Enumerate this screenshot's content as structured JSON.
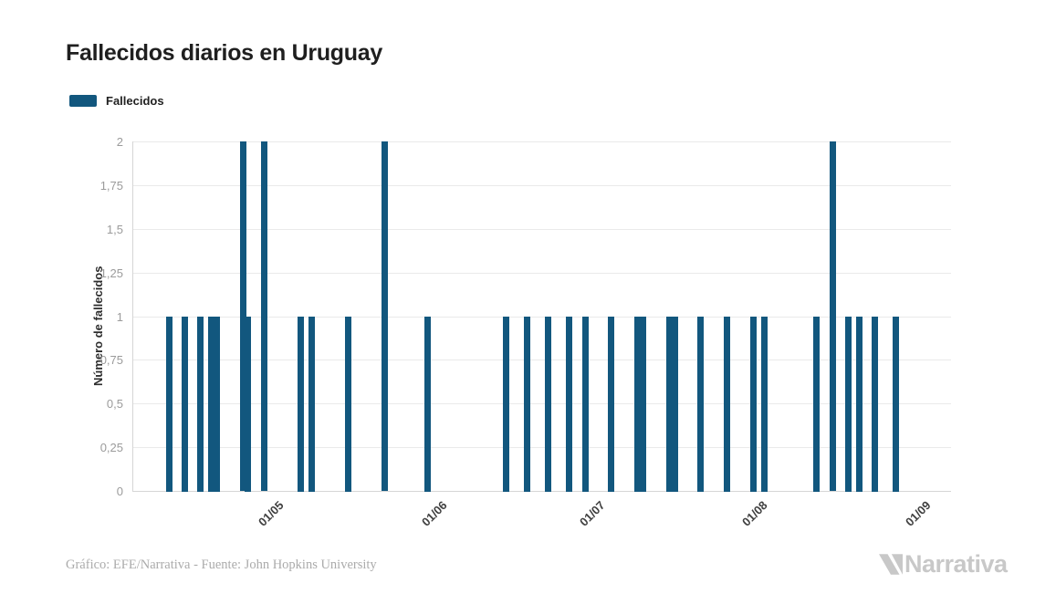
{
  "title": "Fallecidos diarios en Uruguay",
  "legend": {
    "label": "Fallecidos",
    "color": "#12577e"
  },
  "footer": {
    "credit": "Gráfico: EFE/Narrativa - Fuente: John Hopkins University"
  },
  "brand": {
    "name": "Narrativa",
    "color": "#c8c8c8"
  },
  "chart_data": {
    "type": "bar",
    "title": "Fallecidos diarios en Uruguay",
    "xlabel": "",
    "ylabel": "Número de fallecidos",
    "ylim": [
      0,
      2
    ],
    "grid": "horizontal-only",
    "legend_position": "top-left",
    "bar_color": "#12577e",
    "y_ticks": [
      {
        "value": 0,
        "label": "0"
      },
      {
        "value": 0.25,
        "label": "0,25"
      },
      {
        "value": 0.5,
        "label": "0,5"
      },
      {
        "value": 0.75,
        "label": "0,75"
      },
      {
        "value": 1,
        "label": "1"
      },
      {
        "value": 1.25,
        "label": "1,25"
      },
      {
        "value": 1.5,
        "label": "1,5"
      },
      {
        "value": 1.75,
        "label": "1,75"
      },
      {
        "value": 2,
        "label": "2"
      }
    ],
    "x_axis": {
      "start_date": "04/04/2020",
      "total_days": 155.5,
      "ticks": [
        {
          "label": "01/05",
          "day": 27
        },
        {
          "label": "01/06",
          "day": 58
        },
        {
          "label": "01/07",
          "day": 88
        },
        {
          "label": "01/08",
          "day": 119
        },
        {
          "label": "01/09",
          "day": 150
        }
      ]
    },
    "series": [
      {
        "name": "Fallecidos",
        "color": "#12577e",
        "points": [
          {
            "date": "11/04",
            "day": 7,
            "value": 1
          },
          {
            "date": "14/04",
            "day": 10,
            "value": 1
          },
          {
            "date": "17/04",
            "day": 13,
            "value": 1
          },
          {
            "date": "19/04",
            "day": 15,
            "value": 1
          },
          {
            "date": "20/04",
            "day": 16,
            "value": 1
          },
          {
            "date": "25/04",
            "day": 21,
            "value": 2
          },
          {
            "date": "26/04",
            "day": 22,
            "value": 1
          },
          {
            "date": "29/04",
            "day": 25,
            "value": 2
          },
          {
            "date": "06/05",
            "day": 32,
            "value": 1
          },
          {
            "date": "08/05",
            "day": 34,
            "value": 1
          },
          {
            "date": "15/05",
            "day": 41,
            "value": 1
          },
          {
            "date": "22/05",
            "day": 48,
            "value": 2
          },
          {
            "date": "30/05",
            "day": 56,
            "value": 1
          },
          {
            "date": "14/06",
            "day": 71,
            "value": 1
          },
          {
            "date": "18/06",
            "day": 75,
            "value": 1
          },
          {
            "date": "22/06",
            "day": 79,
            "value": 1
          },
          {
            "date": "26/06",
            "day": 83,
            "value": 1
          },
          {
            "date": "29/06",
            "day": 86,
            "value": 1
          },
          {
            "date": "04/07",
            "day": 91,
            "value": 1
          },
          {
            "date": "09/07",
            "day": 96,
            "value": 1
          },
          {
            "date": "10/07",
            "day": 97,
            "value": 1
          },
          {
            "date": "15/07",
            "day": 102,
            "value": 1
          },
          {
            "date": "16/07",
            "day": 103,
            "value": 1
          },
          {
            "date": "21/07",
            "day": 108,
            "value": 1
          },
          {
            "date": "26/07",
            "day": 113,
            "value": 1
          },
          {
            "date": "31/07",
            "day": 118,
            "value": 1
          },
          {
            "date": "02/08",
            "day": 120,
            "value": 1
          },
          {
            "date": "12/08",
            "day": 130,
            "value": 1
          },
          {
            "date": "15/08",
            "day": 133,
            "value": 2
          },
          {
            "date": "18/08",
            "day": 136,
            "value": 1
          },
          {
            "date": "20/08",
            "day": 138,
            "value": 1
          },
          {
            "date": "23/08",
            "day": 141,
            "value": 1
          },
          {
            "date": "27/08",
            "day": 145,
            "value": 1
          }
        ]
      }
    ]
  }
}
